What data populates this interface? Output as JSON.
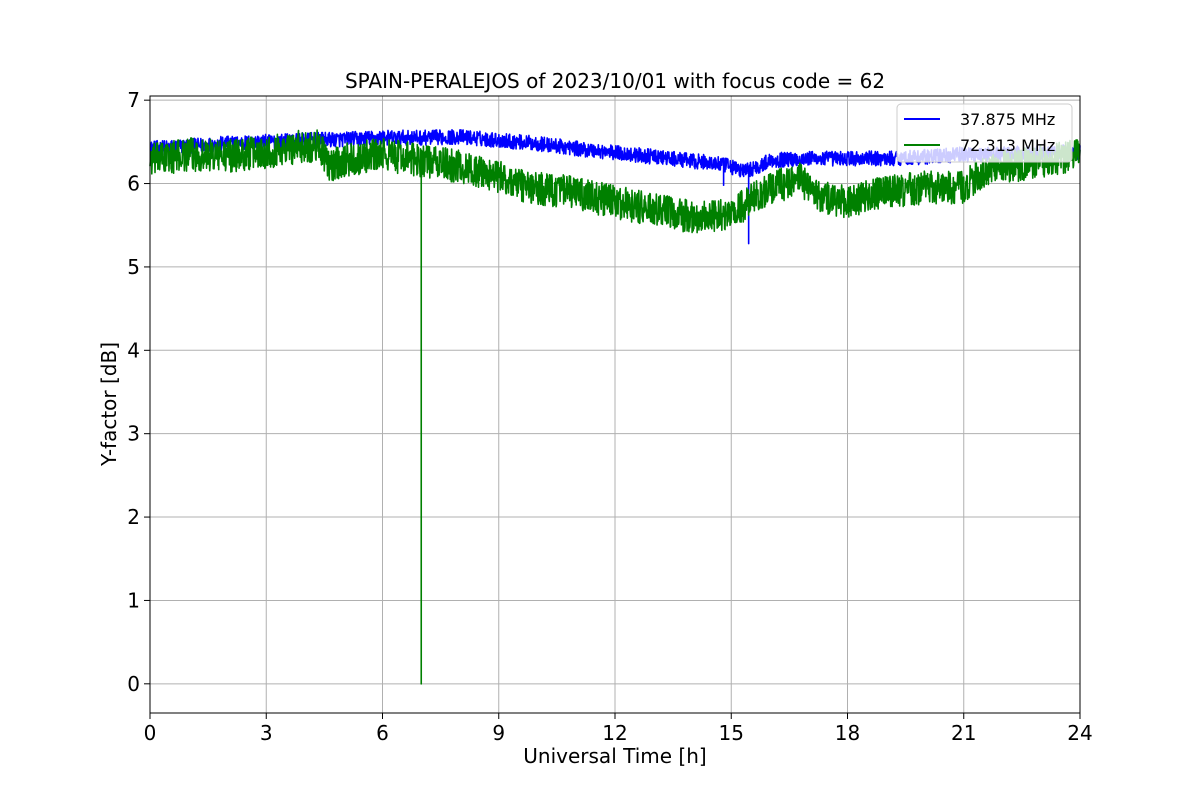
{
  "chart_data": {
    "type": "line",
    "title": "SPAIN-PERALEJOS of 2023/10/01 with focus code = 62",
    "xlabel": "Universal Time [h]",
    "ylabel": "Y-factor [dB]",
    "xlim": [
      0,
      24
    ],
    "ylim": [
      -0.35,
      7.05
    ],
    "xticks": [
      "0",
      "3",
      "6",
      "9",
      "12",
      "15",
      "18",
      "21",
      "24"
    ],
    "yticks": [
      "0",
      "1",
      "2",
      "3",
      "4",
      "5",
      "6",
      "7"
    ],
    "grid": true,
    "legend_position": "top-right",
    "series": [
      {
        "name": "37.875 MHz",
        "color": "#0000ff",
        "noise_band": 0.09,
        "x": [
          0,
          1,
          2,
          3,
          4,
          5,
          6,
          7,
          8,
          9,
          10,
          11,
          12,
          13,
          14,
          14.5,
          15,
          15.3,
          15.7,
          16,
          17,
          18,
          19,
          20,
          21,
          22,
          23,
          24
        ],
        "y": [
          6.42,
          6.45,
          6.48,
          6.5,
          6.52,
          6.53,
          6.55,
          6.55,
          6.56,
          6.52,
          6.48,
          6.42,
          6.37,
          6.32,
          6.27,
          6.25,
          6.2,
          6.15,
          6.2,
          6.28,
          6.3,
          6.3,
          6.3,
          6.32,
          6.35,
          6.35,
          6.37,
          6.38
        ],
        "spikes": [
          {
            "x": 14.8,
            "y": 5.98
          },
          {
            "x": 15.45,
            "y": 5.28
          }
        ]
      },
      {
        "name": "72.313 MHz",
        "color": "#008000",
        "noise_band": 0.2,
        "x": [
          0,
          1,
          2,
          3,
          4,
          4.4,
          4.6,
          5,
          6,
          7,
          8,
          9,
          9.8,
          10.5,
          11,
          12,
          13,
          14,
          15,
          15.5,
          16,
          16.8,
          17.2,
          18,
          19,
          20,
          21,
          21.5,
          22,
          23,
          24
        ],
        "y": [
          6.28,
          6.35,
          6.33,
          6.38,
          6.45,
          6.45,
          6.2,
          6.28,
          6.35,
          6.28,
          6.2,
          6.08,
          5.95,
          5.92,
          5.88,
          5.78,
          5.68,
          5.6,
          5.62,
          5.8,
          5.95,
          6.05,
          5.85,
          5.78,
          5.9,
          5.95,
          5.95,
          6.15,
          6.2,
          6.25,
          6.35
        ],
        "spikes": [
          {
            "x": 7.0,
            "y": 0.0
          }
        ]
      }
    ]
  }
}
